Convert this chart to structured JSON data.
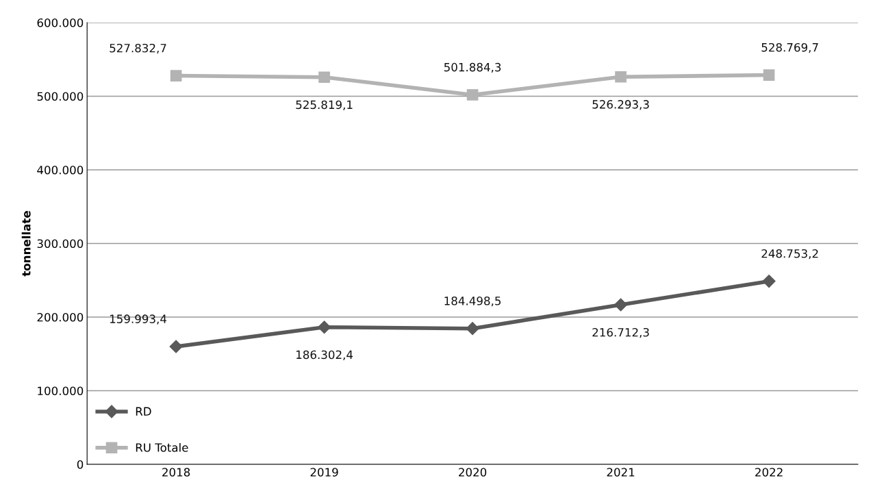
{
  "chart_data": {
    "type": "line",
    "ylabel": "tonnellate",
    "categories": [
      "2018",
      "2019",
      "2020",
      "2021",
      "2022"
    ],
    "ylim": [
      0,
      600000
    ],
    "yticks": [
      {
        "value": 0,
        "label": "0"
      },
      {
        "value": 100000,
        "label": "100.000"
      },
      {
        "value": 200000,
        "label": "200.000"
      },
      {
        "value": 300000,
        "label": "300.000"
      },
      {
        "value": 400000,
        "label": "400.000"
      },
      {
        "value": 500000,
        "label": "500.000"
      },
      {
        "value": 600000,
        "label": "600.000"
      }
    ],
    "grid": "y",
    "legend": "bottom left",
    "line_style": "solid",
    "series": [
      {
        "name": "RD",
        "color": "#595959",
        "marker": "diamond",
        "values": [
          159993.4,
          186302.4,
          184498.5,
          216712.3,
          248753.2
        ],
        "value_labels": [
          "159.993,4",
          "186.302,4",
          "184.498,5",
          "216.712,3",
          "248.753,2"
        ]
      },
      {
        "name": "RU Totale",
        "color": "#b3b3b3",
        "marker": "square",
        "values": [
          527832.7,
          525819.1,
          501884.3,
          526293.3,
          528769.7
        ],
        "value_labels": [
          "527.832,7",
          "525.819,1",
          "501.884,3",
          "526.293,3",
          "528.769,7"
        ]
      }
    ]
  }
}
